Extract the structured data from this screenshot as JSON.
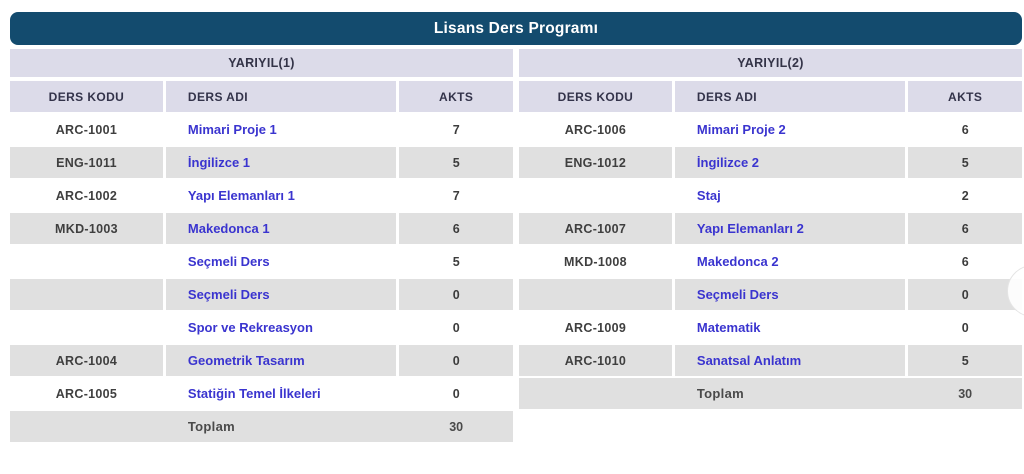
{
  "title": "Lisans Ders Programı",
  "colors": {
    "header_bg": "#134b6e",
    "band_bg": "#dcdbe9",
    "row_alt_bg": "#e0e0e0",
    "link": "#3a34cf"
  },
  "columns": [
    "DERS KODU",
    "DERS ADI",
    "AKTS"
  ],
  "semesters": [
    {
      "label": "YARIYIL(1)",
      "rows": [
        {
          "code": "ARC-1001",
          "name": "Mimari Proje 1",
          "akts": "7"
        },
        {
          "code": "ENG-1011",
          "name": "İngilizce 1",
          "akts": "5"
        },
        {
          "code": "ARC-1002",
          "name": "Yapı Elemanları 1",
          "akts": "7"
        },
        {
          "code": "MKD-1003",
          "name": "Makedonca 1",
          "akts": "6"
        },
        {
          "code": "",
          "name": "Seçmeli Ders",
          "akts": "5"
        },
        {
          "code": "",
          "name": "Seçmeli Ders",
          "akts": "0"
        },
        {
          "code": "",
          "name": "Spor ve Rekreasyon",
          "akts": "0"
        },
        {
          "code": "ARC-1004",
          "name": "Geometrik Tasarım",
          "akts": "0"
        },
        {
          "code": "ARC-1005",
          "name": "Statiğin Temel İlkeleri",
          "akts": "0"
        }
      ],
      "total_label": "Toplam",
      "total_value": "30"
    },
    {
      "label": "YARIYIL(2)",
      "rows": [
        {
          "code": "ARC-1006",
          "name": "Mimari Proje 2",
          "akts": "6"
        },
        {
          "code": "ENG-1012",
          "name": "İngilizce 2",
          "akts": "5"
        },
        {
          "code": "",
          "name": "Staj",
          "akts": "2"
        },
        {
          "code": "ARC-1007",
          "name": "Yapı Elemanları 2",
          "akts": "6"
        },
        {
          "code": "MKD-1008",
          "name": "Makedonca 2",
          "akts": "6"
        },
        {
          "code": "",
          "name": "Seçmeli Ders",
          "akts": "0"
        },
        {
          "code": "ARC-1009",
          "name": "Matematik",
          "akts": "0"
        },
        {
          "code": "ARC-1010",
          "name": "Sanatsal Anlatım",
          "akts": "5"
        }
      ],
      "total_label": "Toplam",
      "total_value": "30"
    }
  ]
}
